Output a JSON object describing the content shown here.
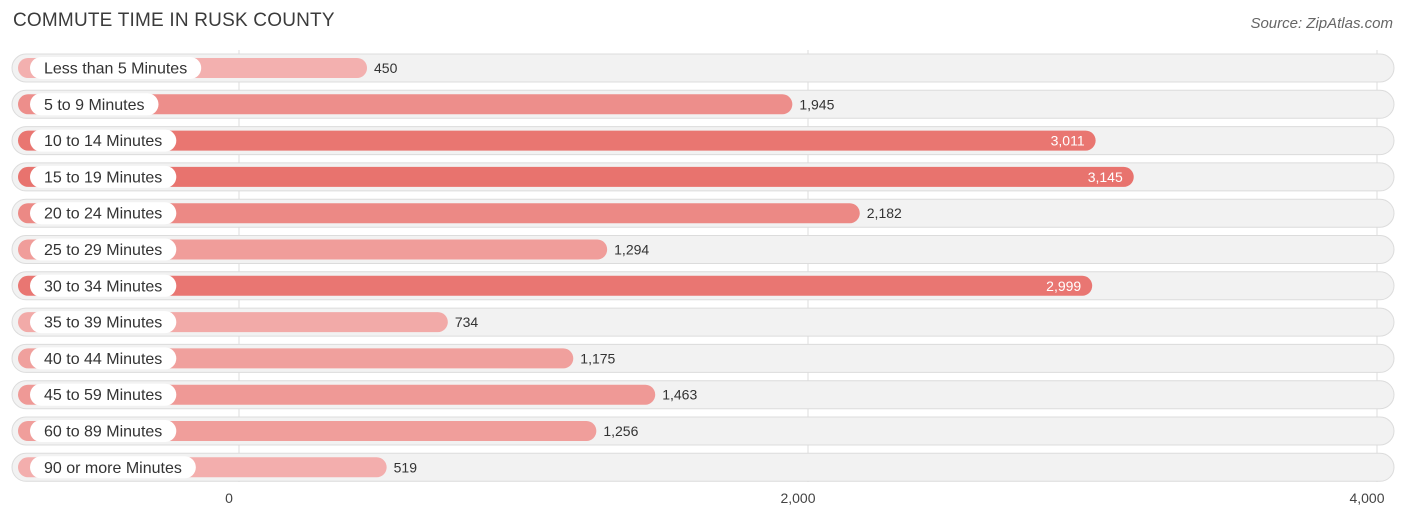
{
  "header": {
    "title": "COMMUTE TIME IN RUSK COUNTY",
    "source": "Source: ZipAtlas.com"
  },
  "colors": {
    "bar_light": "#f4b3b2",
    "bar_strong": "#e8736e",
    "row_bg": "#f2f2f2",
    "row_border": "#dcdcdc",
    "grid": "#dddddd"
  },
  "chart_data": {
    "type": "bar",
    "orientation": "horizontal",
    "categories": [
      "Less than 5 Minutes",
      "5 to 9 Minutes",
      "10 to 14 Minutes",
      "15 to 19 Minutes",
      "20 to 24 Minutes",
      "25 to 29 Minutes",
      "30 to 34 Minutes",
      "35 to 39 Minutes",
      "40 to 44 Minutes",
      "45 to 59 Minutes",
      "60 to 89 Minutes",
      "90 or more Minutes"
    ],
    "values": [
      450,
      1945,
      3011,
      3145,
      2182,
      1294,
      2999,
      734,
      1175,
      1463,
      1256,
      519
    ],
    "value_labels": [
      "450",
      "1,945",
      "3,011",
      "3,145",
      "2,182",
      "1,294",
      "2,999",
      "734",
      "1,175",
      "1,463",
      "1,256",
      "519"
    ],
    "xlim": [
      0,
      4000
    ],
    "xticks": [
      0,
      2000,
      4000
    ],
    "xtick_labels": [
      "0",
      "2,000",
      "4,000"
    ],
    "title": "COMMUTE TIME IN RUSK COUNTY",
    "xlabel": "",
    "ylabel": "",
    "grid": true
  }
}
